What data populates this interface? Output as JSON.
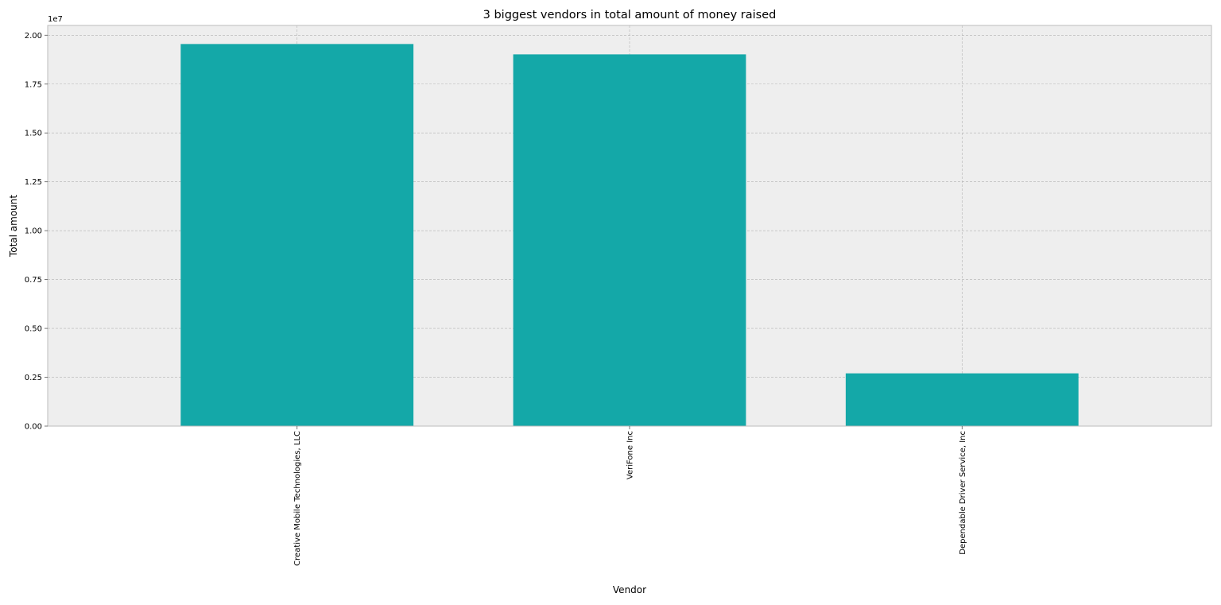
{
  "chart_data": {
    "type": "bar",
    "title": "3 biggest vendors in total amount of money raised",
    "xlabel": "Vendor",
    "ylabel": "Total amount",
    "y_offset_label": "1e7",
    "categories": [
      "Creative Mobile Technologies, LLC",
      "VeriFone Inc",
      "Dependable Driver Service, Inc"
    ],
    "values": [
      19550000,
      19020000,
      2700000
    ],
    "ylim": [
      0,
      20500000
    ],
    "y_ticks": [
      {
        "value": 0,
        "label": "0.00"
      },
      {
        "value": 2500000,
        "label": "0.25"
      },
      {
        "value": 5000000,
        "label": "0.50"
      },
      {
        "value": 7500000,
        "label": "0.75"
      },
      {
        "value": 10000000,
        "label": "1.00"
      },
      {
        "value": 12500000,
        "label": "1.25"
      },
      {
        "value": 15000000,
        "label": "1.50"
      },
      {
        "value": 17500000,
        "label": "1.75"
      },
      {
        "value": 20000000,
        "label": "2.00"
      }
    ],
    "grid": true,
    "bar_color": "#14a8a8",
    "plot_background": "#eeeeee",
    "grid_color": "#b2b2b2",
    "category_label_rotation": "vertical"
  }
}
